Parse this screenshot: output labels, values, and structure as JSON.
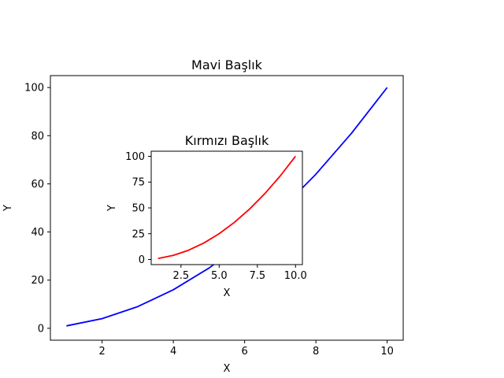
{
  "chart_data": [
    {
      "type": "line",
      "title": "Mavi Başlık",
      "xlabel": "X",
      "ylabel": "Y",
      "xlim": [
        0.55,
        10.45
      ],
      "ylim": [
        -4.95,
        104.95
      ],
      "xticks": [
        2,
        4,
        6,
        8,
        10
      ],
      "xtick_labels": [
        "2",
        "4",
        "6",
        "8",
        "10"
      ],
      "yticks": [
        0,
        20,
        40,
        60,
        80,
        100
      ],
      "ytick_labels": [
        "0",
        "20",
        "40",
        "60",
        "80",
        "100"
      ],
      "grid": false,
      "series": [
        {
          "color": "#0000ff",
          "x": [
            1,
            2,
            3,
            4,
            5,
            6,
            7,
            8,
            9,
            10
          ],
          "y": [
            1,
            4,
            9,
            16,
            25,
            36,
            49,
            64,
            81,
            100
          ]
        }
      ]
    },
    {
      "type": "line",
      "title": "Kırmızı Başlık",
      "xlabel": "X",
      "ylabel": "Y",
      "xlim": [
        0.55,
        10.45
      ],
      "ylim": [
        -4.95,
        104.95
      ],
      "xticks": [
        2.5,
        5.0,
        7.5,
        10.0
      ],
      "xtick_labels": [
        "2.5",
        "5.0",
        "7.5",
        "10.0"
      ],
      "yticks": [
        0,
        25,
        50,
        75,
        100
      ],
      "ytick_labels": [
        "0",
        "25",
        "50",
        "75",
        "100"
      ],
      "grid": false,
      "series": [
        {
          "color": "#ff0000",
          "x": [
            1,
            2,
            3,
            4,
            5,
            6,
            7,
            8,
            9,
            10
          ],
          "y": [
            1,
            4,
            9,
            16,
            25,
            36,
            49,
            64,
            81,
            100
          ]
        }
      ]
    }
  ]
}
